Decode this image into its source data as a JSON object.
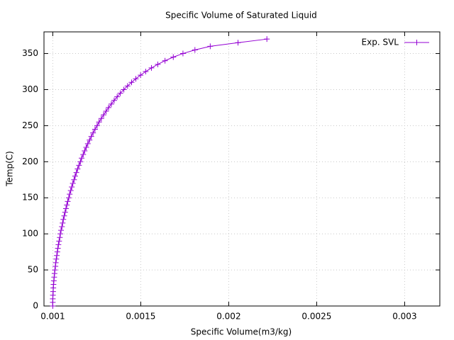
{
  "chart_data": {
    "type": "line",
    "title": "Specific Volume of Saturated Liquid",
    "x_label": "Specific Volume(m3/kg)",
    "y_label": "Temp(C)",
    "x": [
      0.001,
      0.001,
      0.001,
      0.001001,
      0.001002,
      0.001003,
      0.001004,
      0.001006,
      0.001008,
      0.00101,
      0.001012,
      0.001015,
      0.001017,
      0.00102,
      0.001023,
      0.001026,
      0.001029,
      0.001032,
      0.001036,
      0.00104,
      0.001043,
      0.001047,
      0.001052,
      0.001056,
      0.00106,
      0.001065,
      0.00107,
      0.001075,
      0.00108,
      0.001085,
      0.001091,
      0.001096,
      0.001102,
      0.001108,
      0.001114,
      0.001121,
      0.001127,
      0.001134,
      0.001141,
      0.001149,
      0.001157,
      0.001164,
      0.001173,
      0.001181,
      0.00119,
      0.001199,
      0.001209,
      0.001219,
      0.001229,
      0.00124,
      0.001252,
      0.001263,
      0.001276,
      0.001289,
      0.001303,
      0.001317,
      0.001333,
      0.001349,
      0.001366,
      0.001384,
      0.001404,
      0.001425,
      0.001448,
      0.001472,
      0.001499,
      0.001528,
      0.001561,
      0.001597,
      0.001638,
      0.001685,
      0.00174,
      0.001808,
      0.001895,
      0.002053,
      0.002217
    ],
    "series": [
      {
        "name": "Exp. SVL",
        "color": "#9400d3",
        "values": [
          0.01,
          5,
          10,
          15,
          20,
          25,
          30,
          35,
          40,
          45,
          50,
          55,
          60,
          65,
          70,
          75,
          80,
          85,
          90,
          95,
          100,
          105,
          110,
          115,
          120,
          125,
          130,
          135,
          140,
          145,
          150,
          155,
          160,
          165,
          170,
          175,
          180,
          185,
          190,
          195,
          200,
          205,
          210,
          215,
          220,
          225,
          230,
          235,
          240,
          245,
          250,
          255,
          260,
          265,
          270,
          275,
          280,
          285,
          290,
          295,
          300,
          305,
          310,
          315,
          320,
          325,
          330,
          335,
          340,
          345,
          350,
          355,
          360,
          365,
          370
        ]
      }
    ],
    "xlim": [
      0.00095,
      0.0032
    ],
    "xticks": [
      0.001,
      0.0015,
      0.002,
      0.0025,
      0.003
    ],
    "ylim": [
      0,
      380
    ],
    "yticks": [
      0,
      50,
      100,
      150,
      200,
      250,
      300,
      350
    ],
    "grid": true,
    "legend": "top-right"
  }
}
